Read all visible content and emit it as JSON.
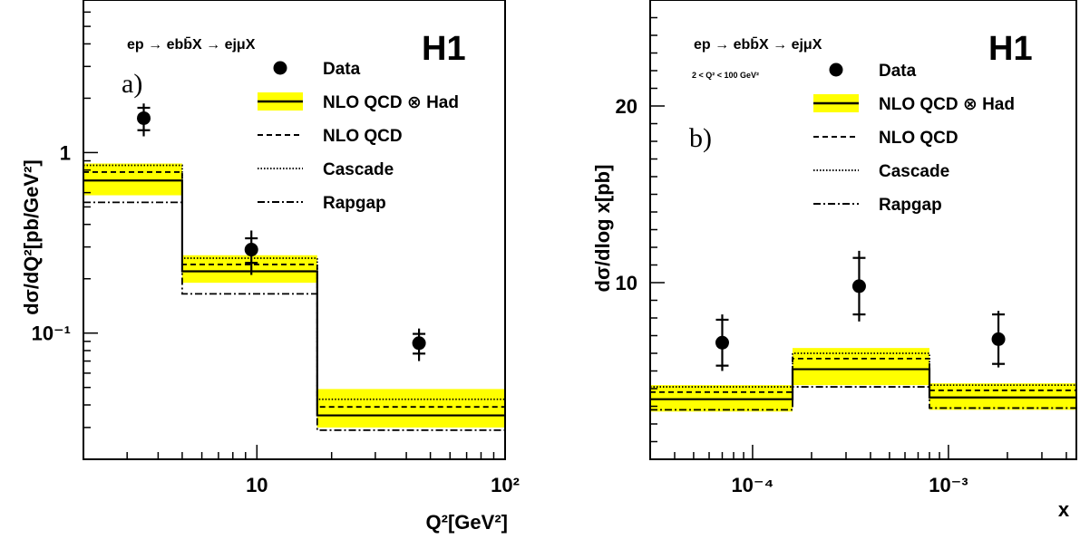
{
  "chart_data": [
    {
      "type": "line",
      "panel_label": "a)",
      "experiment": "H1",
      "process": "ep → ebb̄X → ejμX",
      "xlabel": "Q²[GeV²]",
      "ylabel": "dσ/dQ²[pb/GeV²]",
      "x_scale": "log",
      "y_scale": "log",
      "xlim": [
        2,
        100
      ],
      "ylim": [
        0.02,
        7
      ],
      "x_tick_labels": [
        "10",
        "10²"
      ],
      "y_tick_labels": [
        "1",
        "10⁻¹"
      ],
      "legend_position": "top-right",
      "bin_edges": [
        2,
        5,
        17.5,
        100
      ],
      "data": {
        "name": "Data",
        "x": [
          3.5,
          9.5,
          45
        ],
        "y": [
          1.55,
          0.29,
          0.088
        ],
        "err_stat": [
          0.22,
          0.045,
          0.011
        ],
        "err_tot": [
          0.32,
          0.08,
          0.018
        ]
      },
      "series": [
        {
          "name": "NLO QCD ⊗ Had",
          "style": "solid",
          "values": [
            0.7,
            0.22,
            0.035
          ],
          "band": [
            [
              0.58,
              0.87
            ],
            [
              0.19,
              0.27
            ],
            [
              0.03,
              0.049
            ]
          ]
        },
        {
          "name": "NLO QCD",
          "style": "dashed",
          "values": [
            0.78,
            0.24,
            0.039
          ]
        },
        {
          "name": "Cascade",
          "style": "dotted",
          "values": [
            0.85,
            0.26,
            0.043
          ]
        },
        {
          "name": "Rapgap",
          "style": "dashdot",
          "values": [
            0.53,
            0.165,
            0.029
          ]
        }
      ]
    },
    {
      "type": "line",
      "panel_label": "b)",
      "experiment": "H1",
      "process": "ep → ebb̄X → ejμX",
      "cut_label": "2 < Q² < 100 GeV²",
      "xlabel": "x",
      "ylabel": "dσ/dlog x[pb]",
      "x_scale": "log",
      "y_scale": "linear",
      "xlim": [
        3e-05,
        0.0045
      ],
      "ylim": [
        0,
        26
      ],
      "x_tick_labels": [
        "10⁻⁴",
        "10⁻³"
      ],
      "y_tick_labels": [
        "10",
        "20"
      ],
      "legend_position": "top-right",
      "bin_edges": [
        3e-05,
        0.00016,
        0.0008,
        0.0045
      ],
      "data": {
        "name": "Data",
        "x": [
          7e-05,
          0.00035,
          0.0018
        ],
        "y": [
          6.6,
          9.8,
          6.8
        ],
        "err_stat": [
          1.3,
          1.6,
          1.4
        ],
        "err_tot": [
          1.6,
          2.0,
          1.6
        ]
      },
      "series": [
        {
          "name": "NLO QCD ⊗ Had",
          "style": "solid",
          "values": [
            3.4,
            5.1,
            3.5
          ],
          "band": [
            [
              2.7,
              4.2
            ],
            [
              4.2,
              6.3
            ],
            [
              2.8,
              4.3
            ]
          ]
        },
        {
          "name": "NLO QCD",
          "style": "dashed",
          "values": [
            3.8,
            5.7,
            3.9
          ]
        },
        {
          "name": "Cascade",
          "style": "dotted",
          "values": [
            4.1,
            6.0,
            4.2
          ]
        },
        {
          "name": "Rapgap",
          "style": "dashdot",
          "values": [
            2.8,
            4.1,
            2.9
          ]
        }
      ]
    }
  ]
}
